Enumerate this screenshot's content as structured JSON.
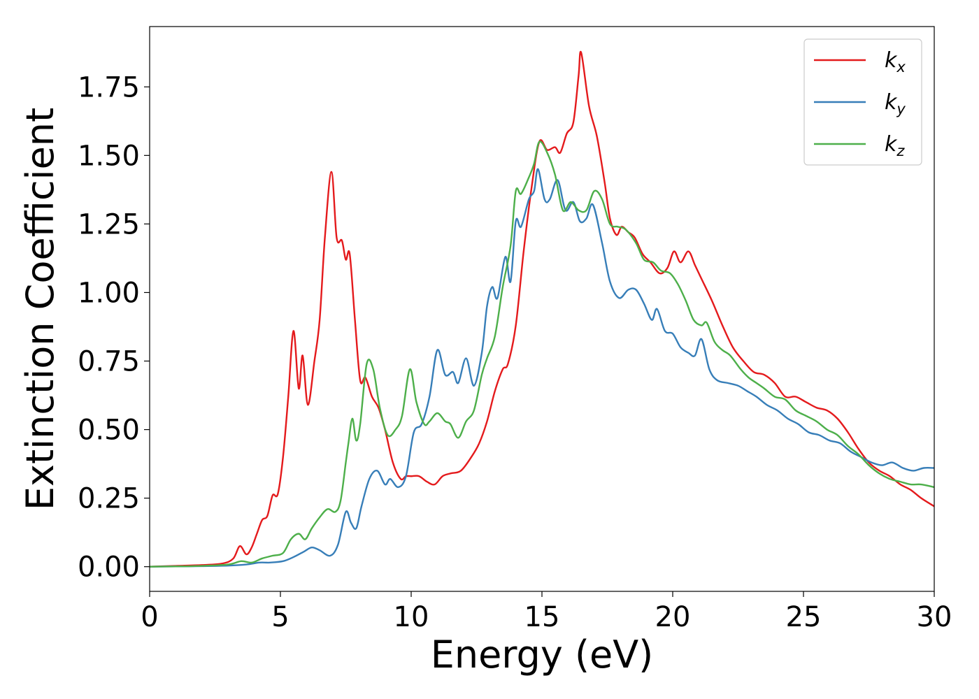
{
  "chart_data": {
    "type": "line",
    "xlabel": "Energy (eV)",
    "ylabel": "Extinction Coefficient",
    "xlim": [
      0,
      30
    ],
    "ylim": [
      -0.09,
      1.97
    ],
    "xticks": [
      "0",
      "5",
      "10",
      "15",
      "20",
      "25",
      "30"
    ],
    "yticks": [
      "0.00",
      "0.25",
      "0.50",
      "0.75",
      "1.00",
      "1.25",
      "1.50",
      "1.75"
    ],
    "grid": false,
    "legend_position": "top-right",
    "series": [
      {
        "name": "k",
        "subscript": "x",
        "color": "#e41a1c",
        "points": [
          [
            0,
            0
          ],
          [
            1,
            0.003
          ],
          [
            2,
            0.006
          ],
          [
            2.8,
            0.012
          ],
          [
            3.2,
            0.03
          ],
          [
            3.45,
            0.075
          ],
          [
            3.7,
            0.045
          ],
          [
            3.9,
            0.07
          ],
          [
            4.1,
            0.12
          ],
          [
            4.3,
            0.17
          ],
          [
            4.5,
            0.185
          ],
          [
            4.7,
            0.26
          ],
          [
            4.9,
            0.265
          ],
          [
            5.1,
            0.4
          ],
          [
            5.3,
            0.62
          ],
          [
            5.5,
            0.86
          ],
          [
            5.7,
            0.65
          ],
          [
            5.85,
            0.77
          ],
          [
            6.05,
            0.59
          ],
          [
            6.3,
            0.75
          ],
          [
            6.5,
            0.9
          ],
          [
            6.7,
            1.2
          ],
          [
            6.95,
            1.44
          ],
          [
            7.15,
            1.2
          ],
          [
            7.35,
            1.19
          ],
          [
            7.5,
            1.12
          ],
          [
            7.65,
            1.14
          ],
          [
            7.85,
            0.9
          ],
          [
            8.05,
            0.68
          ],
          [
            8.25,
            0.69
          ],
          [
            8.5,
            0.62
          ],
          [
            8.75,
            0.58
          ],
          [
            9.0,
            0.5
          ],
          [
            9.3,
            0.38
          ],
          [
            9.6,
            0.32
          ],
          [
            9.8,
            0.33
          ],
          [
            10.0,
            0.33
          ],
          [
            10.3,
            0.33
          ],
          [
            10.6,
            0.31
          ],
          [
            10.9,
            0.3
          ],
          [
            11.2,
            0.33
          ],
          [
            11.5,
            0.34
          ],
          [
            11.9,
            0.35
          ],
          [
            12.3,
            0.4
          ],
          [
            12.6,
            0.45
          ],
          [
            12.9,
            0.53
          ],
          [
            13.2,
            0.64
          ],
          [
            13.5,
            0.72
          ],
          [
            13.7,
            0.74
          ],
          [
            14.0,
            0.88
          ],
          [
            14.3,
            1.15
          ],
          [
            14.6,
            1.38
          ],
          [
            14.9,
            1.55
          ],
          [
            15.2,
            1.52
          ],
          [
            15.5,
            1.53
          ],
          [
            15.7,
            1.51
          ],
          [
            15.95,
            1.58
          ],
          [
            16.2,
            1.62
          ],
          [
            16.4,
            1.79
          ],
          [
            16.5,
            1.875
          ],
          [
            16.8,
            1.68
          ],
          [
            17.1,
            1.57
          ],
          [
            17.4,
            1.4
          ],
          [
            17.6,
            1.27
          ],
          [
            17.85,
            1.21
          ],
          [
            18.05,
            1.24
          ],
          [
            18.3,
            1.22
          ],
          [
            18.55,
            1.2
          ],
          [
            18.85,
            1.14
          ],
          [
            19.15,
            1.11
          ],
          [
            19.5,
            1.07
          ],
          [
            19.8,
            1.09
          ],
          [
            20.05,
            1.15
          ],
          [
            20.3,
            1.11
          ],
          [
            20.6,
            1.15
          ],
          [
            20.85,
            1.1
          ],
          [
            21.1,
            1.05
          ],
          [
            21.5,
            0.97
          ],
          [
            21.9,
            0.88
          ],
          [
            22.3,
            0.8
          ],
          [
            22.7,
            0.75
          ],
          [
            23.1,
            0.71
          ],
          [
            23.5,
            0.7
          ],
          [
            23.9,
            0.67
          ],
          [
            24.3,
            0.62
          ],
          [
            24.7,
            0.62
          ],
          [
            25.1,
            0.6
          ],
          [
            25.5,
            0.58
          ],
          [
            25.9,
            0.57
          ],
          [
            26.3,
            0.54
          ],
          [
            26.7,
            0.49
          ],
          [
            27.1,
            0.43
          ],
          [
            27.5,
            0.38
          ],
          [
            27.9,
            0.35
          ],
          [
            28.3,
            0.33
          ],
          [
            28.7,
            0.3
          ],
          [
            29.1,
            0.28
          ],
          [
            29.5,
            0.25
          ],
          [
            30,
            0.22
          ]
        ]
      },
      {
        "name": "k",
        "subscript": "y",
        "color": "#377eb8",
        "points": [
          [
            0,
            0
          ],
          [
            1,
            0.001
          ],
          [
            2,
            0.002
          ],
          [
            3,
            0.004
          ],
          [
            3.7,
            0.008
          ],
          [
            4.2,
            0.015
          ],
          [
            4.6,
            0.015
          ],
          [
            5.1,
            0.02
          ],
          [
            5.5,
            0.035
          ],
          [
            5.9,
            0.055
          ],
          [
            6.2,
            0.07
          ],
          [
            6.5,
            0.06
          ],
          [
            6.9,
            0.04
          ],
          [
            7.2,
            0.08
          ],
          [
            7.5,
            0.2
          ],
          [
            7.7,
            0.16
          ],
          [
            7.9,
            0.14
          ],
          [
            8.1,
            0.22
          ],
          [
            8.4,
            0.32
          ],
          [
            8.7,
            0.35
          ],
          [
            9.0,
            0.3
          ],
          [
            9.2,
            0.32
          ],
          [
            9.5,
            0.29
          ],
          [
            9.8,
            0.33
          ],
          [
            10.1,
            0.49
          ],
          [
            10.4,
            0.52
          ],
          [
            10.7,
            0.62
          ],
          [
            11.0,
            0.79
          ],
          [
            11.3,
            0.7
          ],
          [
            11.6,
            0.71
          ],
          [
            11.8,
            0.67
          ],
          [
            12.1,
            0.76
          ],
          [
            12.4,
            0.66
          ],
          [
            12.7,
            0.78
          ],
          [
            12.9,
            0.95
          ],
          [
            13.1,
            1.02
          ],
          [
            13.3,
            0.98
          ],
          [
            13.6,
            1.13
          ],
          [
            13.8,
            1.04
          ],
          [
            14.0,
            1.26
          ],
          [
            14.2,
            1.24
          ],
          [
            14.5,
            1.34
          ],
          [
            14.7,
            1.37
          ],
          [
            14.85,
            1.45
          ],
          [
            15.1,
            1.34
          ],
          [
            15.3,
            1.34
          ],
          [
            15.6,
            1.41
          ],
          [
            15.9,
            1.3
          ],
          [
            16.2,
            1.33
          ],
          [
            16.45,
            1.26
          ],
          [
            16.7,
            1.27
          ],
          [
            16.95,
            1.32
          ],
          [
            17.3,
            1.18
          ],
          [
            17.6,
            1.04
          ],
          [
            17.95,
            0.98
          ],
          [
            18.3,
            1.01
          ],
          [
            18.6,
            1.01
          ],
          [
            18.9,
            0.96
          ],
          [
            19.2,
            0.9
          ],
          [
            19.4,
            0.94
          ],
          [
            19.7,
            0.86
          ],
          [
            20.0,
            0.85
          ],
          [
            20.3,
            0.8
          ],
          [
            20.6,
            0.78
          ],
          [
            20.85,
            0.77
          ],
          [
            21.1,
            0.83
          ],
          [
            21.4,
            0.72
          ],
          [
            21.7,
            0.68
          ],
          [
            22.1,
            0.67
          ],
          [
            22.5,
            0.66
          ],
          [
            22.85,
            0.64
          ],
          [
            23.2,
            0.62
          ],
          [
            23.6,
            0.59
          ],
          [
            24.0,
            0.57
          ],
          [
            24.4,
            0.54
          ],
          [
            24.8,
            0.52
          ],
          [
            25.2,
            0.49
          ],
          [
            25.6,
            0.48
          ],
          [
            26.0,
            0.46
          ],
          [
            26.4,
            0.45
          ],
          [
            26.8,
            0.42
          ],
          [
            27.2,
            0.4
          ],
          [
            27.6,
            0.38
          ],
          [
            28.0,
            0.37
          ],
          [
            28.4,
            0.38
          ],
          [
            28.8,
            0.36
          ],
          [
            29.2,
            0.35
          ],
          [
            29.6,
            0.36
          ],
          [
            30,
            0.36
          ]
        ]
      },
      {
        "name": "k",
        "subscript": "z",
        "color": "#4daf4a",
        "points": [
          [
            0,
            0
          ],
          [
            1,
            0.001
          ],
          [
            2,
            0.003
          ],
          [
            3,
            0.008
          ],
          [
            3.5,
            0.02
          ],
          [
            3.9,
            0.015
          ],
          [
            4.3,
            0.03
          ],
          [
            4.7,
            0.04
          ],
          [
            5.1,
            0.05
          ],
          [
            5.4,
            0.1
          ],
          [
            5.7,
            0.12
          ],
          [
            5.95,
            0.1
          ],
          [
            6.2,
            0.14
          ],
          [
            6.5,
            0.18
          ],
          [
            6.8,
            0.21
          ],
          [
            7.1,
            0.2
          ],
          [
            7.3,
            0.24
          ],
          [
            7.5,
            0.38
          ],
          [
            7.6,
            0.45
          ],
          [
            7.75,
            0.54
          ],
          [
            7.9,
            0.46
          ],
          [
            8.05,
            0.52
          ],
          [
            8.3,
            0.74
          ],
          [
            8.55,
            0.72
          ],
          [
            8.8,
            0.58
          ],
          [
            9.1,
            0.48
          ],
          [
            9.4,
            0.5
          ],
          [
            9.65,
            0.55
          ],
          [
            9.95,
            0.72
          ],
          [
            10.2,
            0.6
          ],
          [
            10.5,
            0.52
          ],
          [
            10.7,
            0.53
          ],
          [
            11.0,
            0.56
          ],
          [
            11.3,
            0.53
          ],
          [
            11.5,
            0.52
          ],
          [
            11.8,
            0.47
          ],
          [
            12.1,
            0.53
          ],
          [
            12.4,
            0.57
          ],
          [
            12.7,
            0.7
          ],
          [
            12.9,
            0.76
          ],
          [
            13.2,
            0.84
          ],
          [
            13.5,
            1.02
          ],
          [
            13.8,
            1.17
          ],
          [
            14.0,
            1.37
          ],
          [
            14.2,
            1.36
          ],
          [
            14.5,
            1.42
          ],
          [
            14.7,
            1.47
          ],
          [
            14.9,
            1.55
          ],
          [
            15.2,
            1.51
          ],
          [
            15.5,
            1.43
          ],
          [
            15.8,
            1.3
          ],
          [
            16.1,
            1.33
          ],
          [
            16.4,
            1.3
          ],
          [
            16.7,
            1.3
          ],
          [
            17.0,
            1.37
          ],
          [
            17.3,
            1.34
          ],
          [
            17.6,
            1.25
          ],
          [
            17.9,
            1.24
          ],
          [
            18.2,
            1.23
          ],
          [
            18.6,
            1.18
          ],
          [
            18.9,
            1.12
          ],
          [
            19.25,
            1.11
          ],
          [
            19.55,
            1.08
          ],
          [
            19.9,
            1.07
          ],
          [
            20.2,
            1.03
          ],
          [
            20.5,
            0.97
          ],
          [
            20.8,
            0.9
          ],
          [
            21.1,
            0.88
          ],
          [
            21.3,
            0.89
          ],
          [
            21.6,
            0.82
          ],
          [
            21.9,
            0.79
          ],
          [
            22.2,
            0.77
          ],
          [
            22.6,
            0.72
          ],
          [
            22.9,
            0.69
          ],
          [
            23.2,
            0.67
          ],
          [
            23.5,
            0.65
          ],
          [
            23.9,
            0.62
          ],
          [
            24.3,
            0.61
          ],
          [
            24.7,
            0.57
          ],
          [
            25.1,
            0.55
          ],
          [
            25.5,
            0.53
          ],
          [
            25.9,
            0.5
          ],
          [
            26.3,
            0.48
          ],
          [
            26.7,
            0.44
          ],
          [
            27.1,
            0.41
          ],
          [
            27.5,
            0.37
          ],
          [
            27.9,
            0.34
          ],
          [
            28.3,
            0.32
          ],
          [
            28.7,
            0.31
          ],
          [
            29.1,
            0.3
          ],
          [
            29.5,
            0.3
          ],
          [
            30,
            0.29
          ]
        ]
      }
    ]
  }
}
